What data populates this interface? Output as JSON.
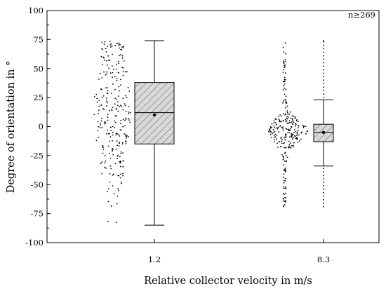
{
  "chart_data": {
    "type": "box",
    "title": "",
    "xlabel": "Relative collector velocity in m/s",
    "ylabel": "Degree of orientation in °",
    "annotation": "n≥269",
    "ylim": [
      -100,
      100
    ],
    "y_ticks": [
      100,
      75,
      50,
      25,
      0,
      -25,
      -50,
      -75,
      -100
    ],
    "grid": false,
    "legend": "none",
    "colors": {
      "box_fill": "#d9d9d9",
      "hatch": "#555555",
      "line": "#000000",
      "points": "#000000"
    },
    "categories": [
      "1.2",
      "8.3"
    ],
    "boxes": [
      {
        "category": "1.2",
        "whisker_low": -85,
        "q1": -15,
        "median": 12,
        "mean": 10,
        "q3": 38,
        "whisker_high": 74,
        "outliers": []
      },
      {
        "category": "8.3",
        "whisker_low": -34,
        "q1": -13,
        "median": -5,
        "mean": -5,
        "q3": 2,
        "whisker_high": 23,
        "outliers": [
          25,
          28,
          31,
          34,
          37,
          40,
          43,
          46,
          49,
          52,
          55,
          58,
          61,
          64,
          67,
          70,
          73,
          74,
          -36,
          -39,
          -42,
          -45,
          -48,
          -51,
          -54,
          -57,
          -60,
          -63,
          -66,
          -69
        ]
      }
    ],
    "n_points_per_group": 269
  }
}
